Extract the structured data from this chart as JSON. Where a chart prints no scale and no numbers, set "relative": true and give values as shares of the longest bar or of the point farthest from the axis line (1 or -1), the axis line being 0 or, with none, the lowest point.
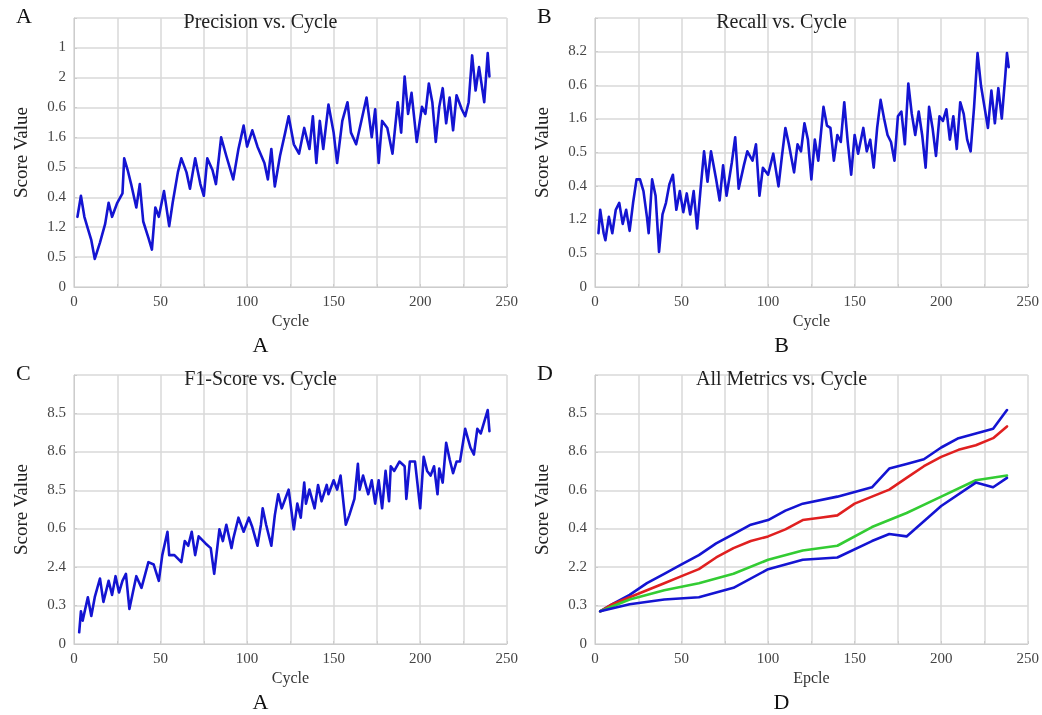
{
  "chart_data": [
    {
      "type": "line",
      "title": "Precision vs. Cycle",
      "xlabel": "Cycle",
      "ylabel": "Score Value",
      "annotations": [
        "A",
        "A",
        "0",
        "0.5",
        "1.2",
        "0.4",
        "0.5",
        "1.6",
        "0.6",
        "2",
        "1"
      ],
      "grid": true,
      "marker": "none",
      "relative": true,
      "xlim": [
        0,
        250
      ],
      "xticks": [
        0,
        {
          "value": 25,
          "label": null
        },
        50,
        {
          "value": 75,
          "label": null
        },
        100,
        {
          "value": 125,
          "label": null
        },
        150,
        {
          "value": 175,
          "label": null
        },
        200,
        {
          "value": 225,
          "label": null
        },
        250
      ],
      "series": [
        {
          "color": "#1414d2",
          "x": [
            2,
            4,
            6,
            8,
            10,
            12,
            15,
            18,
            20,
            22,
            25,
            28,
            29,
            31,
            33,
            36,
            38,
            40,
            43,
            45,
            47,
            49,
            52,
            55,
            57,
            60,
            62,
            65,
            67,
            70,
            73,
            75,
            77,
            80,
            82,
            85,
            88,
            92,
            95,
            98,
            100,
            103,
            106,
            110,
            112,
            114,
            116,
            119,
            122,
            124,
            127,
            130,
            133,
            136,
            138,
            140,
            142,
            144,
            147,
            150,
            152,
            155,
            158,
            160,
            163,
            166,
            169,
            172,
            174,
            176,
            178,
            181,
            184,
            187,
            189,
            191,
            193,
            195,
            198,
            201,
            203,
            205,
            207,
            209,
            211,
            213,
            215,
            217,
            219,
            221,
            224,
            226,
            228,
            230,
            232,
            234,
            237,
            239,
            240
          ],
          "values": [
            0.3,
            0.39,
            0.3,
            0.25,
            0.2,
            0.12,
            0.19,
            0.27,
            0.36,
            0.3,
            0.36,
            0.4,
            0.55,
            0.5,
            0.44,
            0.34,
            0.44,
            0.28,
            0.21,
            0.16,
            0.34,
            0.3,
            0.41,
            0.26,
            0.36,
            0.49,
            0.55,
            0.49,
            0.42,
            0.55,
            0.44,
            0.39,
            0.55,
            0.5,
            0.44,
            0.64,
            0.56,
            0.46,
            0.59,
            0.69,
            0.6,
            0.67,
            0.6,
            0.53,
            0.46,
            0.59,
            0.43,
            0.56,
            0.66,
            0.73,
            0.61,
            0.57,
            0.68,
            0.59,
            0.73,
            0.53,
            0.71,
            0.59,
            0.78,
            0.66,
            0.53,
            0.71,
            0.79,
            0.66,
            0.61,
            0.71,
            0.81,
            0.64,
            0.76,
            0.53,
            0.71,
            0.68,
            0.57,
            0.79,
            0.66,
            0.9,
            0.74,
            0.83,
            0.62,
            0.77,
            0.74,
            0.87,
            0.79,
            0.62,
            0.77,
            0.85,
            0.7,
            0.81,
            0.67,
            0.82,
            0.76,
            0.73,
            0.79,
            0.99,
            0.84,
            0.94,
            0.79,
            1,
            0.9
          ]
        }
      ]
    },
    {
      "type": "line",
      "title": "Recall vs. Cycle",
      "xlabel": "Cycle",
      "ylabel": "Score Value",
      "annotations": [
        "B",
        "B",
        "0",
        "0.5",
        "1.2",
        "0.4",
        "0.5",
        "1.6",
        "0.6",
        "8.2"
      ],
      "grid": true,
      "marker": "none",
      "relative": true,
      "xlim": [
        0,
        250
      ],
      "xticks": [
        0,
        {
          "value": 25,
          "label": null
        },
        50,
        {
          "value": 75,
          "label": null
        },
        100,
        {
          "value": 125,
          "label": null
        },
        150,
        {
          "value": 175,
          "label": null
        },
        200,
        {
          "value": 225,
          "label": null
        },
        250
      ],
      "series": [
        {
          "color": "#1414d2",
          "x": [
            2,
            3,
            5,
            6,
            8,
            10,
            12,
            14,
            16,
            18,
            20,
            22,
            24,
            26,
            28,
            30,
            31,
            33,
            35,
            37,
            39,
            41,
            43,
            45,
            47,
            49,
            51,
            53,
            55,
            57,
            59,
            61,
            63,
            65,
            67,
            70,
            72,
            74,
            76,
            79,
            81,
            83,
            86,
            88,
            91,
            93,
            95,
            97,
            100,
            103,
            106,
            108,
            110,
            112,
            115,
            117,
            119,
            121,
            123,
            125,
            127,
            129,
            132,
            134,
            136,
            138,
            140,
            142,
            144,
            146,
            148,
            150,
            152,
            155,
            157,
            159,
            161,
            163,
            165,
            167,
            169,
            171,
            173,
            175,
            177,
            179,
            181,
            183,
            185,
            187,
            189,
            191,
            193,
            195,
            197,
            199,
            201,
            203,
            205,
            207,
            209,
            211,
            213,
            215,
            217,
            219,
            221,
            223,
            225,
            227,
            229,
            231,
            233,
            235,
            237,
            238,
            239
          ],
          "values": [
            0.23,
            0.33,
            0.23,
            0.2,
            0.3,
            0.23,
            0.33,
            0.36,
            0.27,
            0.33,
            0.24,
            0.36,
            0.46,
            0.46,
            0.41,
            0.3,
            0.23,
            0.46,
            0.39,
            0.15,
            0.31,
            0.36,
            0.44,
            0.48,
            0.33,
            0.41,
            0.32,
            0.4,
            0.31,
            0.41,
            0.25,
            0.42,
            0.58,
            0.45,
            0.58,
            0.46,
            0.37,
            0.52,
            0.39,
            0.53,
            0.64,
            0.42,
            0.52,
            0.58,
            0.54,
            0.61,
            0.39,
            0.51,
            0.48,
            0.57,
            0.43,
            0.56,
            0.68,
            0.61,
            0.49,
            0.61,
            0.58,
            0.7,
            0.63,
            0.46,
            0.63,
            0.54,
            0.77,
            0.69,
            0.68,
            0.54,
            0.65,
            0.62,
            0.79,
            0.62,
            0.48,
            0.65,
            0.57,
            0.68,
            0.58,
            0.63,
            0.51,
            0.68,
            0.8,
            0.72,
            0.65,
            0.62,
            0.54,
            0.73,
            0.75,
            0.61,
            0.87,
            0.74,
            0.65,
            0.75,
            0.65,
            0.51,
            0.77,
            0.68,
            0.56,
            0.73,
            0.71,
            0.76,
            0.63,
            0.73,
            0.59,
            0.79,
            0.74,
            0.63,
            0.58,
            0.77,
            1,
            0.86,
            0.77,
            0.68,
            0.84,
            0.7,
            0.85,
            0.72,
            0.9,
            1,
            0.94
          ]
        }
      ]
    },
    {
      "type": "line",
      "title": "F1-Score vs. Cycle",
      "xlabel": "Cycle",
      "ylabel": "Score Value",
      "annotations": [
        "C",
        "A",
        "0",
        "0.3",
        "2.4",
        "0.6",
        "8.5",
        "8.6",
        "8.5"
      ],
      "grid": true,
      "marker": "none",
      "relative": true,
      "xlim": [
        0,
        250
      ],
      "xticks": [
        0,
        {
          "value": 25,
          "label": null
        },
        50,
        {
          "value": 75,
          "label": null
        },
        100,
        {
          "value": 125,
          "label": null
        },
        150,
        {
          "value": 175,
          "label": null
        },
        200,
        {
          "value": 225,
          "label": null
        },
        250
      ],
      "series": [
        {
          "color": "#1414d2",
          "x": [
            3,
            4,
            5,
            8,
            10,
            12,
            15,
            17,
            20,
            22,
            24,
            26,
            28,
            30,
            32,
            34,
            36,
            39,
            43,
            46,
            49,
            51,
            54,
            55,
            58,
            62,
            64,
            66,
            68,
            70,
            72,
            76,
            79,
            81,
            84,
            86,
            88,
            91,
            92,
            95,
            98,
            101,
            103,
            106,
            108,
            109,
            111,
            114,
            116,
            118,
            120,
            122,
            124,
            127,
            129,
            131,
            133,
            134,
            136,
            139,
            141,
            143,
            146,
            147,
            150,
            152,
            154,
            157,
            159,
            162,
            164,
            165,
            167,
            170,
            172,
            174,
            176,
            178,
            180,
            182,
            183,
            185,
            188,
            191,
            192,
            194,
            197,
            200,
            202,
            204,
            206,
            208,
            210,
            211,
            213,
            215,
            217,
            219,
            221,
            223,
            226,
            229,
            231,
            233,
            235,
            239,
            240
          ],
          "values": [
            0.05,
            0.14,
            0.1,
            0.2,
            0.12,
            0.2,
            0.28,
            0.18,
            0.27,
            0.21,
            0.29,
            0.22,
            0.27,
            0.3,
            0.15,
            0.22,
            0.29,
            0.24,
            0.35,
            0.34,
            0.27,
            0.38,
            0.48,
            0.38,
            0.38,
            0.35,
            0.44,
            0.42,
            0.48,
            0.38,
            0.46,
            0.43,
            0.41,
            0.3,
            0.49,
            0.44,
            0.51,
            0.41,
            0.45,
            0.54,
            0.48,
            0.54,
            0.5,
            0.42,
            0.51,
            0.58,
            0.51,
            0.42,
            0.55,
            0.64,
            0.58,
            0.62,
            0.66,
            0.49,
            0.6,
            0.54,
            0.69,
            0.6,
            0.66,
            0.58,
            0.68,
            0.61,
            0.68,
            0.64,
            0.7,
            0.66,
            0.72,
            0.51,
            0.55,
            0.62,
            0.77,
            0.66,
            0.72,
            0.64,
            0.7,
            0.6,
            0.7,
            0.58,
            0.74,
            0.61,
            0.76,
            0.74,
            0.78,
            0.76,
            0.62,
            0.78,
            0.78,
            0.58,
            0.8,
            0.74,
            0.72,
            0.76,
            0.64,
            0.75,
            0.69,
            0.86,
            0.79,
            0.73,
            0.78,
            0.78,
            0.92,
            0.84,
            0.81,
            0.92,
            0.9,
            1,
            0.91
          ]
        }
      ]
    },
    {
      "type": "line",
      "title": "All Metrics vs. Cycle",
      "xlabel": "Epcle",
      "ylabel": "Score Value",
      "annotations": [
        "D",
        "D",
        "0",
        "0.3",
        "2.2",
        "0.4",
        "0.6",
        "8.6",
        "8.5"
      ],
      "grid": true,
      "marker": "none",
      "relative": true,
      "xlim": [
        0,
        250
      ],
      "xticks": [
        0,
        {
          "value": 25,
          "label": null
        },
        50,
        {
          "value": 75,
          "label": null
        },
        100,
        {
          "value": 125,
          "label": null
        },
        150,
        {
          "value": 175,
          "label": null
        },
        200,
        {
          "value": 225,
          "label": null
        },
        250
      ],
      "series": [
        {
          "color": "#1414d2",
          "x": [
            3,
            10,
            20,
            30,
            40,
            50,
            60,
            70,
            80,
            90,
            100,
            110,
            120,
            140,
            150,
            160,
            170,
            180,
            190,
            200,
            210,
            220,
            230,
            238
          ],
          "values": [
            0.14,
            0.17,
            0.21,
            0.26,
            0.3,
            0.34,
            0.38,
            0.43,
            0.47,
            0.51,
            0.53,
            0.57,
            0.6,
            0.63,
            0.65,
            0.67,
            0.75,
            0.77,
            0.79,
            0.84,
            0.88,
            0.9,
            0.92,
            1
          ]
        },
        {
          "color": "#e02020",
          "x": [
            3,
            10,
            20,
            30,
            40,
            50,
            60,
            70,
            80,
            90,
            100,
            110,
            120,
            130,
            140,
            150,
            160,
            170,
            180,
            190,
            200,
            210,
            220,
            230,
            238
          ],
          "values": [
            0.14,
            0.17,
            0.2,
            0.23,
            0.26,
            0.29,
            0.32,
            0.37,
            0.41,
            0.44,
            0.46,
            0.49,
            0.53,
            0.54,
            0.55,
            0.6,
            0.63,
            0.66,
            0.71,
            0.76,
            0.8,
            0.83,
            0.85,
            0.88,
            0.93
          ]
        },
        {
          "color": "#33cc33",
          "x": [
            3,
            20,
            40,
            60,
            80,
            100,
            120,
            140,
            160,
            180,
            200,
            220,
            238
          ],
          "values": [
            0.14,
            0.19,
            0.23,
            0.26,
            0.3,
            0.36,
            0.4,
            0.42,
            0.5,
            0.56,
            0.63,
            0.7,
            0.72
          ]
        },
        {
          "color": "#1414d2",
          "x": [
            3,
            20,
            40,
            60,
            80,
            100,
            120,
            140,
            160,
            170,
            180,
            200,
            220,
            230,
            238
          ],
          "values": [
            0.14,
            0.17,
            0.19,
            0.2,
            0.24,
            0.32,
            0.36,
            0.37,
            0.44,
            0.47,
            0.46,
            0.59,
            0.69,
            0.67,
            0.71
          ]
        }
      ]
    }
  ]
}
